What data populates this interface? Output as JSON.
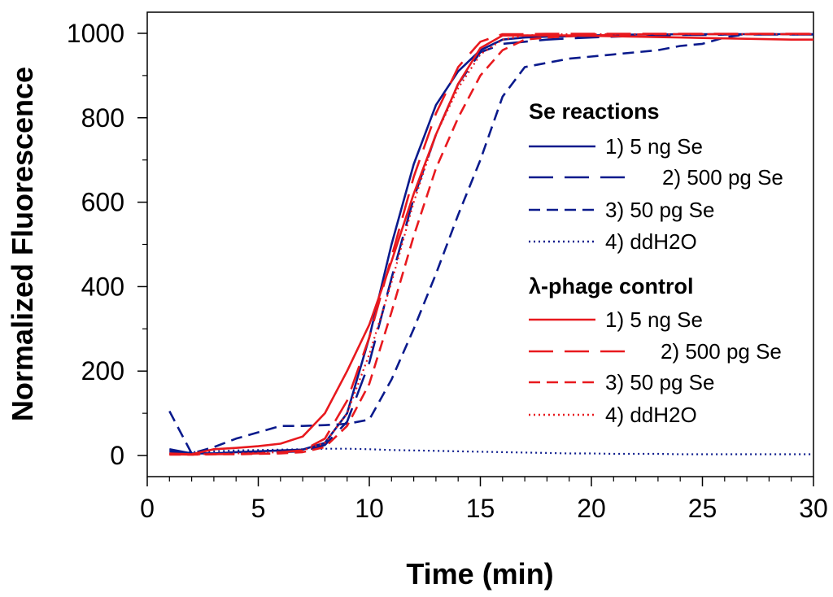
{
  "chart_data": {
    "type": "line",
    "xlabel": "Time (min)",
    "ylabel": "Normalized Fluorescence",
    "xlim": [
      0,
      30
    ],
    "ylim": [
      -50,
      1050
    ],
    "x_ticks": [
      0,
      5,
      10,
      15,
      20,
      25,
      30
    ],
    "y_ticks": [
      0,
      200,
      400,
      600,
      800,
      1000
    ],
    "grid": false,
    "legend": {
      "placement": "right",
      "groups": [
        {
          "title": "Se reactions",
          "entries": [
            "1) 5 ng Se",
            "2) 500 pg Se",
            "3) 50 pg Se",
            "4) ddH2O"
          ]
        },
        {
          "title": "λ-phage control",
          "entries": [
            "1) 5 ng Se",
            "2) 500 pg Se",
            "3) 50 pg Se",
            "4) ddH2O"
          ]
        }
      ]
    },
    "series": [
      {
        "name": "Se reactions 1) 5 ng Se",
        "color": "#0a1a8c",
        "dash": "solid",
        "x": [
          1,
          2,
          3,
          4,
          5,
          6,
          7,
          8,
          9,
          10,
          11,
          12,
          13,
          14,
          15,
          16,
          17,
          18,
          19,
          20,
          21,
          22,
          23,
          24,
          25,
          26,
          27,
          28,
          29,
          30
        ],
        "y": [
          10,
          5,
          5,
          8,
          10,
          12,
          14,
          30,
          100,
          280,
          500,
          690,
          830,
          910,
          960,
          985,
          990,
          992,
          993,
          995,
          996,
          997,
          997,
          998,
          998,
          998,
          998,
          998,
          998,
          998
        ]
      },
      {
        "name": "Se reactions 2) 500 pg Se",
        "color": "#0a1a8c",
        "dash": "long",
        "x": [
          1,
          2,
          3,
          4,
          5,
          6,
          7,
          8,
          9,
          10,
          11,
          12,
          13,
          14,
          15,
          16,
          17,
          18,
          19,
          20,
          21,
          22,
          23,
          24,
          25,
          26,
          27,
          28,
          29,
          30
        ],
        "y": [
          15,
          5,
          5,
          5,
          6,
          8,
          10,
          25,
          80,
          220,
          420,
          610,
          760,
          880,
          955,
          975,
          980,
          985,
          988,
          990,
          992,
          994,
          995,
          996,
          996,
          997,
          997,
          997,
          997,
          997
        ]
      },
      {
        "name": "Se reactions 3) 50 pg Se",
        "color": "#0a1a8c",
        "dash": "short",
        "x": [
          1,
          2,
          3,
          4,
          5,
          6,
          7,
          8,
          9,
          10,
          11,
          12,
          13,
          14,
          15,
          16,
          17,
          18,
          19,
          20,
          21,
          22,
          23,
          24,
          25,
          26,
          27,
          28,
          29,
          30
        ],
        "y": [
          105,
          5,
          20,
          40,
          55,
          70,
          70,
          72,
          75,
          85,
          180,
          300,
          430,
          570,
          700,
          850,
          920,
          930,
          940,
          945,
          950,
          955,
          960,
          970,
          975,
          990,
          998,
          998,
          998,
          998
        ]
      },
      {
        "name": "Se reactions 4) ddH2O",
        "color": "#0a1a8c",
        "dash": "dot",
        "x": [
          1,
          2,
          3,
          4,
          5,
          6,
          7,
          8,
          9,
          10,
          11,
          12,
          13,
          14,
          15,
          16,
          17,
          18,
          19,
          20,
          21,
          22,
          23,
          24,
          25,
          26,
          27,
          28,
          29,
          30
        ],
        "y": [
          5,
          8,
          10,
          12,
          13,
          14,
          15,
          16,
          16,
          15,
          13,
          12,
          11,
          10,
          9,
          8,
          7,
          6,
          5,
          5,
          4,
          4,
          4,
          3,
          3,
          3,
          3,
          3,
          3,
          3
        ]
      },
      {
        "name": "λ-phage control 1) 5 ng Se",
        "color": "#e8191e",
        "dash": "solid",
        "x": [
          1,
          2,
          3,
          4,
          5,
          6,
          7,
          8,
          9,
          10,
          11,
          12,
          13,
          14,
          15,
          16,
          17,
          18,
          19,
          20,
          21,
          22,
          23,
          24,
          25,
          26,
          27,
          28,
          29,
          30
        ],
        "y": [
          5,
          3,
          15,
          18,
          22,
          28,
          45,
          100,
          200,
          310,
          460,
          620,
          760,
          880,
          965,
          995,
          995,
          995,
          995,
          994,
          993,
          992,
          991,
          990,
          989,
          988,
          987,
          986,
          985,
          985
        ]
      },
      {
        "name": "λ-phage control 2) 500 pg Se",
        "color": "#e8191e",
        "dash": "long",
        "x": [
          1,
          2,
          3,
          4,
          5,
          6,
          7,
          8,
          9,
          10,
          11,
          12,
          13,
          14,
          15,
          16,
          17,
          18,
          19,
          20,
          21,
          22,
          23,
          24,
          25,
          26,
          27,
          28,
          29,
          30
        ],
        "y": [
          3,
          2,
          3,
          4,
          5,
          8,
          12,
          40,
          130,
          280,
          470,
          660,
          810,
          920,
          980,
          998,
          998,
          999,
          999,
          999,
          999,
          999,
          999,
          999,
          999,
          999,
          999,
          999,
          999,
          999
        ]
      },
      {
        "name": "λ-phage control 3) 50 pg Se",
        "color": "#e8191e",
        "dash": "short",
        "x": [
          1,
          2,
          3,
          4,
          5,
          6,
          7,
          8,
          9,
          10,
          11,
          12,
          13,
          14,
          15,
          16,
          17,
          18,
          19,
          20,
          21,
          22,
          23,
          24,
          25,
          26,
          27,
          28,
          29,
          30
        ],
        "y": [
          2,
          2,
          3,
          3,
          4,
          5,
          8,
          20,
          70,
          170,
          340,
          520,
          680,
          800,
          900,
          960,
          985,
          990,
          993,
          995,
          996,
          997,
          998,
          998,
          998,
          998,
          998,
          998,
          998,
          998
        ]
      },
      {
        "name": "λ-phage control 4) ddH2O",
        "color": "#e8191e",
        "dash": "dot",
        "x": [
          1,
          2,
          3,
          4,
          5,
          6,
          7,
          8,
          9,
          10,
          11,
          12,
          13,
          14,
          15,
          16,
          17,
          18,
          19,
          20,
          21,
          22,
          23,
          24,
          25,
          26,
          27,
          28,
          29,
          30
        ],
        "y": [
          4,
          2,
          4,
          5,
          6,
          8,
          12,
          30,
          100,
          240,
          410,
          600,
          760,
          870,
          950,
          985,
          995,
          997,
          998,
          998,
          998,
          998,
          998,
          998,
          998,
          998,
          998,
          998,
          998,
          998
        ]
      }
    ]
  }
}
